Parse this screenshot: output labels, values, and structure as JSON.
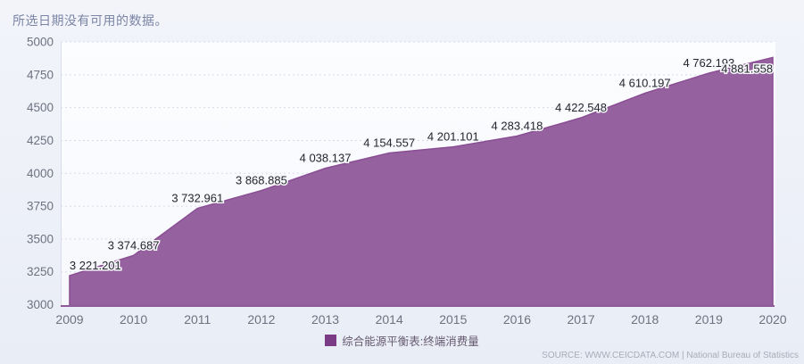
{
  "notice": "所选日期没有可用的数据。",
  "chart_data": {
    "type": "area",
    "title": "",
    "categories": [
      "2009",
      "2010",
      "2011",
      "2012",
      "2013",
      "2014",
      "2015",
      "2016",
      "2017",
      "2018",
      "2019",
      "2020"
    ],
    "series": [
      {
        "name": "综合能源平衡表:终端消费量",
        "values": [
          3221.201,
          3374.687,
          3732.961,
          3868.885,
          4038.137,
          4154.557,
          4201.101,
          4283.418,
          4422.548,
          4610.197,
          4762.193,
          4881.558
        ]
      }
    ],
    "point_labels": [
      "3 221.201",
      "3 374.687",
      "3 732.961",
      "3 868.885",
      "4 038.137",
      "4 154.557",
      "4 201.101",
      "4 283.418",
      "4 422.548",
      "4 610.197",
      "4 762.193",
      "4 881.558"
    ],
    "xlabel": "",
    "ylabel": "",
    "ylim": [
      3000,
      5000
    ],
    "ytick_step": 250,
    "grid": "horizontal-dashed",
    "legend_position": "bottom-center"
  },
  "legend": {
    "label": "综合能源平衡表:终端消费量"
  },
  "source": "SOURCE: WWW.CEICDATA.COM | National Bureau of Statistics",
  "colors": {
    "area_fill": "#96619f",
    "area_stroke": "#8a4e94",
    "axis_line": "#8e5a99",
    "grid_line": "#d7dbe7",
    "tick_label": "#6e7280",
    "data_label": "#26262e",
    "data_label_halo": "#f7f8fc",
    "legend_swatch": "#7a3d85"
  }
}
